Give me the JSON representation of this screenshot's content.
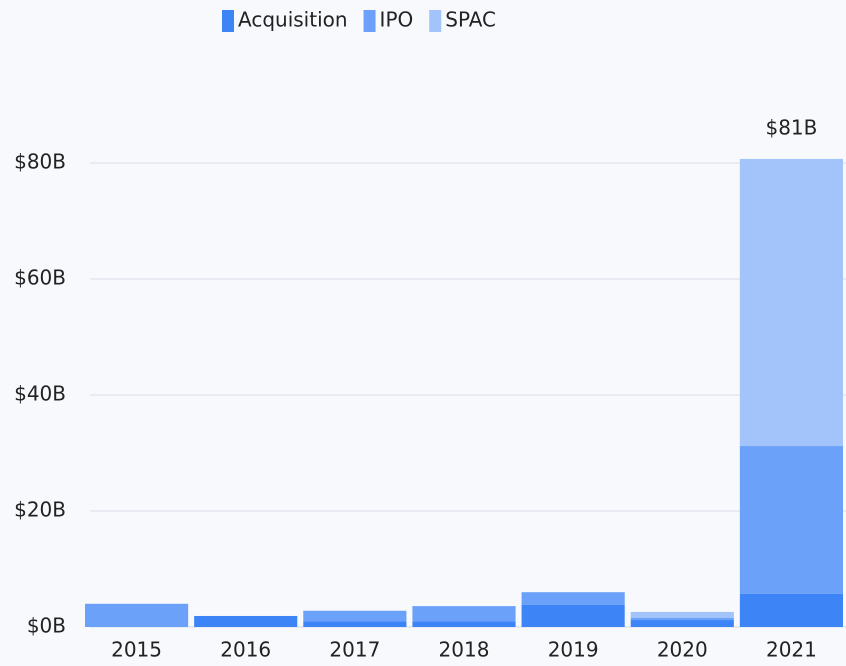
{
  "chart_data": {
    "type": "stacked_bar",
    "categories": [
      "2015",
      "2016",
      "2017",
      "2018",
      "2019",
      "2020",
      "2021"
    ],
    "series": [
      {
        "name": "Acquisition",
        "color": "#3d85f7",
        "values": [
          0,
          1.9,
          1.0,
          1.0,
          3.8,
          1.2,
          5.7
        ]
      },
      {
        "name": "IPO",
        "color": "#6ba1f8",
        "values": [
          4.0,
          0,
          1.8,
          2.6,
          2.2,
          0.4,
          25.5
        ]
      },
      {
        "name": "SPAC",
        "color": "#a3c3fb",
        "values": [
          0,
          0,
          0,
          0,
          0,
          1.0,
          49.5
        ]
      }
    ],
    "ylim": [
      0,
      81
    ],
    "yticks": [
      {
        "value": 0,
        "label": "$0B"
      },
      {
        "value": 20,
        "label": "$20B"
      },
      {
        "value": 40,
        "label": "$40B"
      },
      {
        "value": 60,
        "label": "$60B"
      },
      {
        "value": 80,
        "label": "$80B"
      }
    ],
    "grid": true,
    "legend": "top",
    "annotations": [
      {
        "category": "2021",
        "text": "$81B"
      }
    ]
  }
}
